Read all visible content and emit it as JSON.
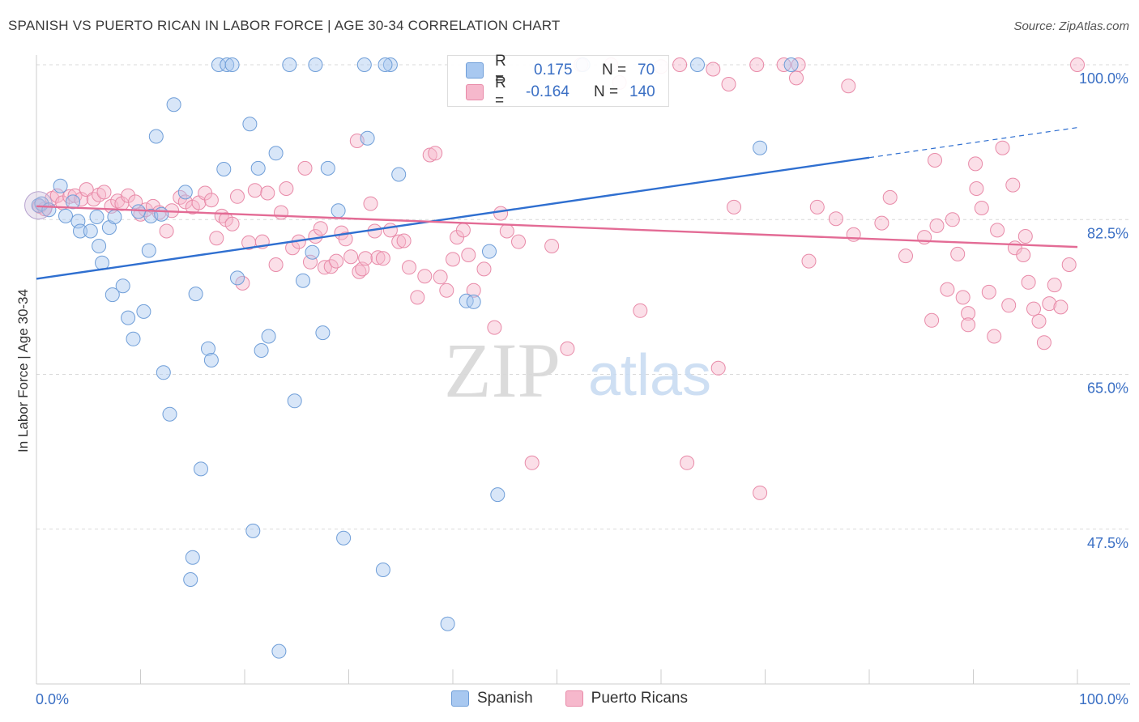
{
  "header": {
    "title": "SPANISH VS PUERTO RICAN IN LABOR FORCE | AGE 30-34 CORRELATION CHART",
    "source": "Source: ZipAtlas.com"
  },
  "watermark": {
    "zip": "ZIP",
    "atlas": "atlas"
  },
  "stats": [
    {
      "r_label": "R =",
      "r_value": "0.175",
      "n_label": "N =",
      "n_value": "70",
      "color": "#a8c8f0",
      "border": "#6f9ed8"
    },
    {
      "r_label": "R =",
      "r_value": "-0.164",
      "n_label": "N =",
      "n_value": "140",
      "color": "#f6b8cc",
      "border": "#e88aa8"
    }
  ],
  "legend": [
    {
      "label": "Spanish",
      "color": "#a8c8f0",
      "border": "#6f9ed8"
    },
    {
      "label": "Puerto Ricans",
      "color": "#f6b8cc",
      "border": "#e88aa8"
    }
  ],
  "chart_data": {
    "type": "scatter",
    "title": "SPANISH VS PUERTO RICAN IN LABOR FORCE | AGE 30-34 CORRELATION CHART",
    "xlabel": "",
    "ylabel": "In Labor Force | Age 30-34",
    "xlim": [
      0,
      100
    ],
    "ylim": [
      30,
      100
    ],
    "x_tick_labels": [
      "0.0%",
      "100.0%"
    ],
    "y_ticks": [
      47.5,
      65.0,
      82.5,
      100.0
    ],
    "y_tick_labels": [
      "47.5%",
      "65.0%",
      "82.5%",
      "100.0%"
    ],
    "grid": true,
    "legend_position": "bottom-center",
    "series": [
      {
        "name": "Spanish",
        "color": "#6f9ed8",
        "fill": "#a8c8f0",
        "line": "#2f6fd0",
        "trend": {
          "x": [
            0,
            80,
            100
          ],
          "y": [
            75.8,
            89.5,
            92.9
          ],
          "dashed_from_x": 80
        },
        "points": [
          [
            0.2,
            84.1
          ],
          [
            0.5,
            84.3
          ],
          [
            1.2,
            83.6
          ],
          [
            2.3,
            86.3
          ],
          [
            2.8,
            82.9
          ],
          [
            3.5,
            84.5
          ],
          [
            4.0,
            82.3
          ],
          [
            4.2,
            81.2
          ],
          [
            5.2,
            81.2
          ],
          [
            5.8,
            82.8
          ],
          [
            6.3,
            77.6
          ],
          [
            7.0,
            81.6
          ],
          [
            7.5,
            82.8
          ],
          [
            7.3,
            74.0
          ],
          [
            8.3,
            75.0
          ],
          [
            8.8,
            71.4
          ],
          [
            9.3,
            69.0
          ],
          [
            10.3,
            72.1
          ],
          [
            10.8,
            79.0
          ],
          [
            11.0,
            82.9
          ],
          [
            11.5,
            91.9
          ],
          [
            12.2,
            65.2
          ],
          [
            12.8,
            60.5
          ],
          [
            13.2,
            95.5
          ],
          [
            14.3,
            85.6
          ],
          [
            14.8,
            41.8
          ],
          [
            15.3,
            74.1
          ],
          [
            15.8,
            54.3
          ],
          [
            16.5,
            67.9
          ],
          [
            16.8,
            66.6
          ],
          [
            17.5,
            100.0
          ],
          [
            18.3,
            100.0
          ],
          [
            18.8,
            100.0
          ],
          [
            18.0,
            88.2
          ],
          [
            19.3,
            75.9
          ],
          [
            20.5,
            93.3
          ],
          [
            20.8,
            47.3
          ],
          [
            21.3,
            88.3
          ],
          [
            21.6,
            67.7
          ],
          [
            22.3,
            69.3
          ],
          [
            23.0,
            90.0
          ],
          [
            23.3,
            33.7
          ],
          [
            24.3,
            100.0
          ],
          [
            24.8,
            62.0
          ],
          [
            25.6,
            75.6
          ],
          [
            26.5,
            78.8
          ],
          [
            26.8,
            100.0
          ],
          [
            27.5,
            69.7
          ],
          [
            28.0,
            88.3
          ],
          [
            29.5,
            46.5
          ],
          [
            31.5,
            100.0
          ],
          [
            31.8,
            91.7
          ],
          [
            33.3,
            42.9
          ],
          [
            34.0,
            100.0
          ],
          [
            34.8,
            87.6
          ],
          [
            39.5,
            36.8
          ],
          [
            41.3,
            73.3
          ],
          [
            42.0,
            73.2
          ],
          [
            43.5,
            78.9
          ],
          [
            44.3,
            51.4
          ],
          [
            52.5,
            100.0
          ],
          [
            63.5,
            100.0
          ],
          [
            69.5,
            90.6
          ],
          [
            72.5,
            100.0
          ],
          [
            33.5,
            100.0
          ],
          [
            12.0,
            83.1
          ],
          [
            6.0,
            79.5
          ],
          [
            9.8,
            83.4
          ],
          [
            15.0,
            44.3
          ],
          [
            29.0,
            83.5
          ]
        ]
      },
      {
        "name": "Puerto Ricans",
        "color": "#e88aa8",
        "fill": "#f6b8cc",
        "line": "#e36b95",
        "trend": {
          "x": [
            0,
            100
          ],
          "y": [
            84.0,
            79.4
          ]
        },
        "points": [
          [
            0.3,
            84.0
          ],
          [
            0.8,
            83.7
          ],
          [
            1.5,
            84.9
          ],
          [
            2.0,
            85.2
          ],
          [
            2.5,
            84.4
          ],
          [
            3.2,
            85.1
          ],
          [
            3.7,
            85.2
          ],
          [
            4.3,
            84.8
          ],
          [
            4.8,
            85.9
          ],
          [
            5.5,
            84.8
          ],
          [
            6.0,
            85.3
          ],
          [
            6.5,
            85.6
          ],
          [
            7.2,
            84.0
          ],
          [
            7.8,
            84.6
          ],
          [
            8.2,
            84.3
          ],
          [
            8.8,
            85.2
          ],
          [
            9.5,
            84.5
          ],
          [
            10.0,
            83.1
          ],
          [
            10.5,
            83.6
          ],
          [
            11.2,
            84.0
          ],
          [
            11.8,
            83.3
          ],
          [
            12.5,
            81.2
          ],
          [
            13.0,
            83.5
          ],
          [
            13.8,
            85.0
          ],
          [
            14.3,
            84.5
          ],
          [
            15.0,
            83.9
          ],
          [
            15.6,
            84.4
          ],
          [
            16.2,
            85.5
          ],
          [
            16.8,
            84.7
          ],
          [
            17.3,
            80.4
          ],
          [
            17.8,
            82.9
          ],
          [
            18.2,
            82.5
          ],
          [
            18.8,
            82.0
          ],
          [
            19.3,
            85.1
          ],
          [
            19.8,
            75.3
          ],
          [
            20.4,
            79.9
          ],
          [
            21.0,
            85.8
          ],
          [
            21.7,
            80.0
          ],
          [
            22.2,
            85.5
          ],
          [
            23.0,
            77.4
          ],
          [
            23.5,
            83.3
          ],
          [
            24.0,
            86.0
          ],
          [
            24.6,
            79.3
          ],
          [
            25.2,
            80.0
          ],
          [
            25.8,
            88.3
          ],
          [
            26.3,
            77.7
          ],
          [
            26.8,
            80.6
          ],
          [
            27.3,
            81.5
          ],
          [
            27.7,
            77.1
          ],
          [
            28.3,
            77.2
          ],
          [
            28.8,
            77.8
          ],
          [
            29.3,
            81.0
          ],
          [
            29.7,
            80.3
          ],
          [
            30.2,
            78.3
          ],
          [
            30.8,
            91.4
          ],
          [
            31.0,
            76.6
          ],
          [
            31.3,
            76.9
          ],
          [
            31.6,
            78.1
          ],
          [
            32.1,
            84.3
          ],
          [
            32.5,
            81.2
          ],
          [
            32.8,
            78.2
          ],
          [
            33.3,
            78.1
          ],
          [
            34.0,
            81.3
          ],
          [
            34.8,
            80.0
          ],
          [
            35.3,
            80.1
          ],
          [
            35.8,
            77.1
          ],
          [
            36.6,
            73.7
          ],
          [
            37.3,
            76.1
          ],
          [
            37.8,
            89.8
          ],
          [
            38.3,
            90.0
          ],
          [
            38.8,
            76.0
          ],
          [
            39.4,
            74.5
          ],
          [
            40.0,
            78.0
          ],
          [
            40.4,
            80.5
          ],
          [
            41.0,
            81.3
          ],
          [
            41.5,
            78.5
          ],
          [
            42.0,
            74.5
          ],
          [
            43.0,
            76.9
          ],
          [
            44.0,
            70.3
          ],
          [
            44.6,
            83.2
          ],
          [
            45.2,
            81.2
          ],
          [
            46.3,
            80.0
          ],
          [
            47.6,
            55.0
          ],
          [
            49.5,
            79.5
          ],
          [
            51.0,
            67.9
          ],
          [
            52.3,
            100.0
          ],
          [
            55.2,
            100.0
          ],
          [
            58.0,
            72.2
          ],
          [
            61.8,
            100.0
          ],
          [
            62.5,
            55.0
          ],
          [
            65.5,
            65.7
          ],
          [
            66.5,
            97.8
          ],
          [
            67.0,
            83.9
          ],
          [
            69.2,
            100.0
          ],
          [
            69.5,
            51.6
          ],
          [
            71.8,
            100.0
          ],
          [
            73.0,
            98.5
          ],
          [
            74.2,
            77.8
          ],
          [
            75.0,
            83.9
          ],
          [
            76.8,
            82.6
          ],
          [
            78.0,
            97.6
          ],
          [
            81.2,
            82.1
          ],
          [
            83.5,
            78.4
          ],
          [
            86.0,
            71.1
          ],
          [
            86.5,
            81.8
          ],
          [
            87.5,
            74.6
          ],
          [
            88.0,
            82.5
          ],
          [
            88.5,
            78.6
          ],
          [
            89.0,
            73.7
          ],
          [
            89.5,
            71.9
          ],
          [
            89.5,
            70.6
          ],
          [
            90.3,
            86.0
          ],
          [
            90.8,
            83.8
          ],
          [
            91.5,
            74.3
          ],
          [
            92.0,
            69.3
          ],
          [
            92.3,
            81.3
          ],
          [
            92.8,
            90.6
          ],
          [
            93.4,
            72.8
          ],
          [
            94.0,
            79.3
          ],
          [
            94.8,
            78.5
          ],
          [
            95.3,
            75.4
          ],
          [
            95.8,
            72.4
          ],
          [
            96.3,
            71.0
          ],
          [
            96.8,
            68.6
          ],
          [
            97.3,
            73.0
          ],
          [
            97.8,
            75.1
          ],
          [
            98.4,
            72.6
          ],
          [
            99.2,
            77.4
          ],
          [
            100.0,
            100.0
          ],
          [
            85.3,
            80.5
          ],
          [
            86.3,
            89.2
          ],
          [
            90.2,
            88.8
          ],
          [
            78.5,
            80.8
          ],
          [
            93.8,
            86.4
          ],
          [
            65.0,
            99.5
          ],
          [
            73.2,
            100.0
          ],
          [
            60.0,
            99.8
          ],
          [
            56.0,
            98.0
          ],
          [
            82.0,
            85.0
          ],
          [
            95.0,
            80.6
          ]
        ]
      }
    ]
  }
}
